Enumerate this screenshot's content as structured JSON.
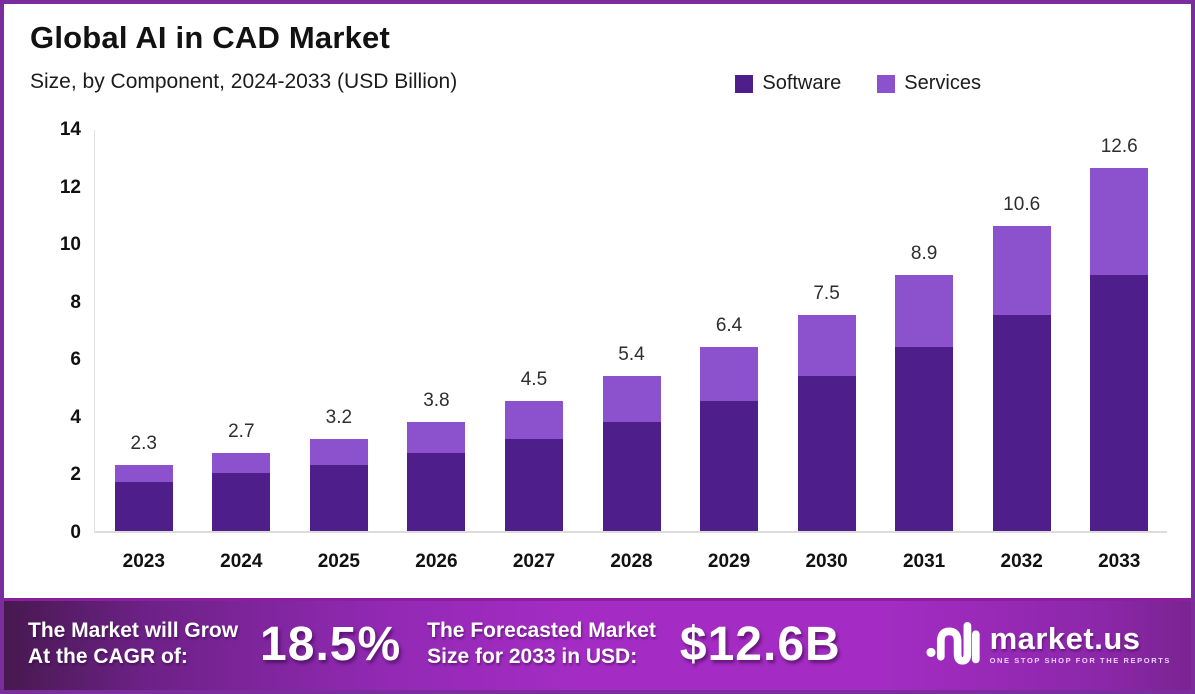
{
  "header": {
    "title": "Global AI in CAD Market",
    "subtitle": "Size, by Component, 2024-2033 (USD Billion)"
  },
  "colors": {
    "software": "#4e1e8a",
    "services": "#8c52cd",
    "frame_border": "#7a2d9c",
    "banner_dark": "#47194f",
    "banner_bright": "#a42cc4",
    "axis_line": "#dcdcdc",
    "label_text": "#2e2e2e"
  },
  "legend": {
    "items": [
      {
        "label": "Software",
        "color": "#4e1e8a"
      },
      {
        "label": "Services",
        "color": "#8c52cd"
      }
    ]
  },
  "chart_data": {
    "type": "bar",
    "stacked": true,
    "title": "Global AI in CAD Market",
    "subtitle": "Size, by Component, 2024-2033 (USD Billion)",
    "xlabel": "",
    "ylabel": "",
    "ylim": [
      0,
      14
    ],
    "yticks": [
      0,
      2,
      4,
      6,
      8,
      10,
      12,
      14
    ],
    "grid": false,
    "legend_position": "top-right",
    "categories": [
      "2023",
      "2024",
      "2025",
      "2026",
      "2027",
      "2028",
      "2029",
      "2030",
      "2031",
      "2032",
      "2033"
    ],
    "series": [
      {
        "name": "Software",
        "color": "#4e1e8a",
        "values": [
          1.7,
          2.0,
          2.3,
          2.7,
          3.2,
          3.8,
          4.5,
          5.4,
          6.4,
          7.5,
          8.9
        ]
      },
      {
        "name": "Services",
        "color": "#8c52cd",
        "values": [
          0.6,
          0.7,
          0.9,
          1.1,
          1.3,
          1.6,
          1.9,
          2.1,
          2.5,
          3.1,
          3.7
        ]
      }
    ],
    "total_labels": [
      "2.3",
      "2.7",
      "3.2",
      "3.8",
      "4.5",
      "5.4",
      "6.4",
      "7.5",
      "8.9",
      "10.6",
      "12.6"
    ]
  },
  "banner": {
    "cagr_label_line1": "The Market will Grow",
    "cagr_label_line2": "At the CAGR of:",
    "cagr_value": "18.5%",
    "forecast_label_line1": "The Forecasted Market",
    "forecast_label_line2": "Size for 2033 in USD:",
    "forecast_value": "$12.6B",
    "brand_name": "market.us",
    "brand_tagline": "ONE STOP SHOP FOR THE REPORTS"
  }
}
